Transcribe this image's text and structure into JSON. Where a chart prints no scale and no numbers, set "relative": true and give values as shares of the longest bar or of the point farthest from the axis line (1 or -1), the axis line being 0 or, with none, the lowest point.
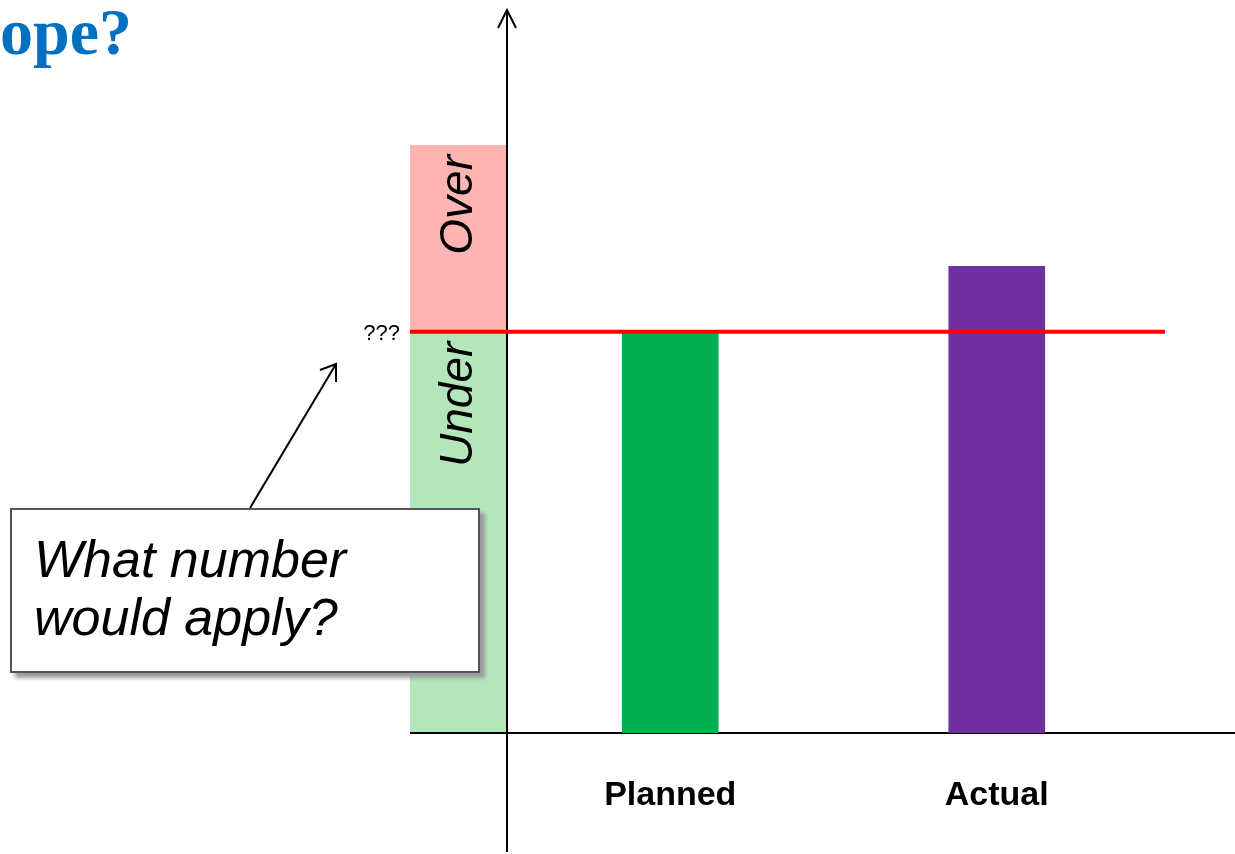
{
  "chart_data": {
    "type": "bar",
    "title": "ope?",
    "relative": true,
    "categories": [
      "Planned",
      "Actual"
    ],
    "values": [
      0.86,
      1
    ],
    "colors": [
      "#00b050",
      "#7030a0"
    ],
    "ref_lines": [
      {
        "axis": "y",
        "value": 0.86,
        "label": "???",
        "color": "#ff0000"
      }
    ],
    "bands": [
      {
        "axis": "y",
        "from": 0.86,
        "to": 1.26,
        "label": "Over",
        "color": "#ffb4b4"
      },
      {
        "axis": "y",
        "from": 0,
        "to": 0.86,
        "label": "Under",
        "color": "#b4e6bc"
      }
    ],
    "annotations": [
      "What number would apply?"
    ],
    "grid": false,
    "legend": false
  }
}
